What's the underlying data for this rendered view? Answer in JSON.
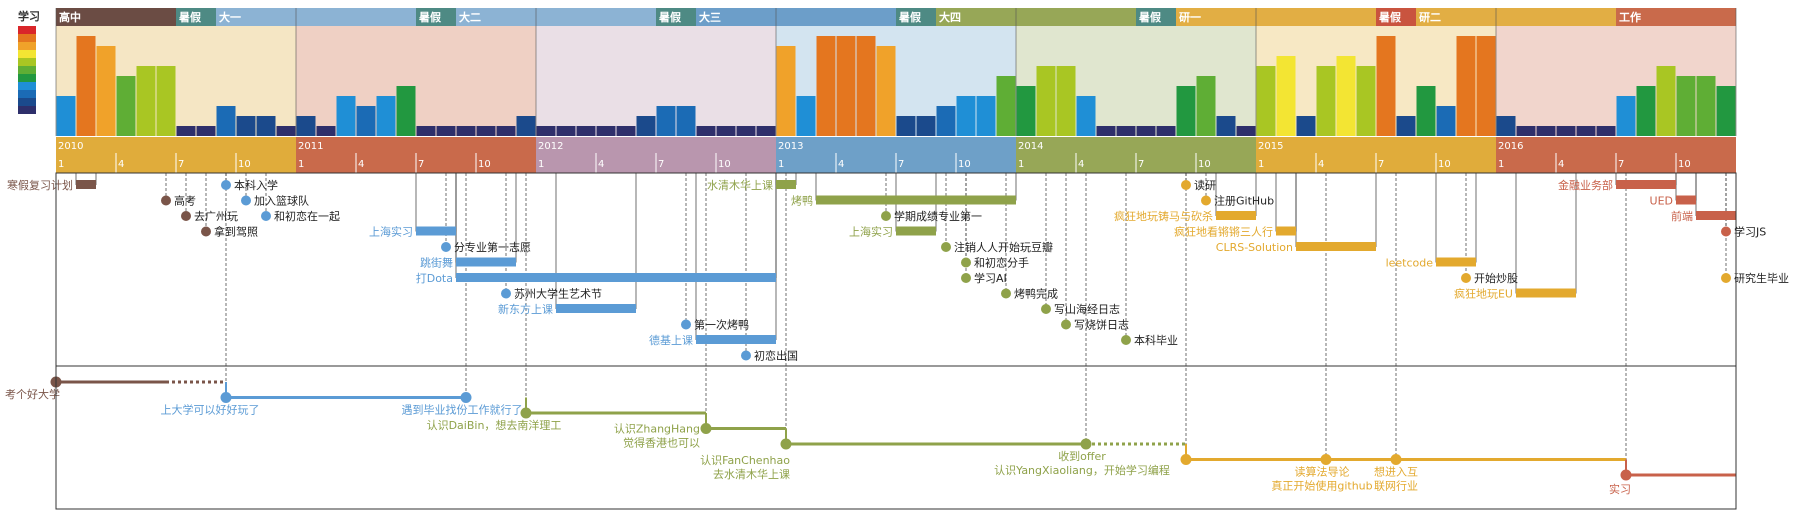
{
  "legend_title": "学习",
  "colors": {
    "brown": "#7a5549",
    "blue": "#5b9bd5",
    "olive": "#8fa24a",
    "gold": "#e3a92e",
    "rust": "#c8614a",
    "axis_gold": "#e0ac3b",
    "axis_rust": "#c96a4b",
    "axis_mauve": "#b996ae",
    "axis_blue": "#6ea0c8",
    "axis_olive": "#97a757"
  },
  "chart_data": {
    "type": "timeline",
    "legend_title": "学习",
    "legend_scale": [
      "#d9262a",
      "#e4761f",
      "#f0a22a",
      "#f3e533",
      "#a9c623",
      "#5fae35",
      "#229840",
      "#1f8fd6",
      "#1b6bb5",
      "#1b4a8c",
      "#2e2f6b"
    ],
    "x_axis": {
      "years": [
        {
          "label": "2010",
          "color": "#e0ac3b"
        },
        {
          "label": "2011",
          "color": "#c96a4b"
        },
        {
          "label": "2012",
          "color": "#b996ae"
        },
        {
          "label": "2013",
          "color": "#6ea0c8"
        },
        {
          "label": "2014",
          "color": "#97a757"
        },
        {
          "label": "2015",
          "color": "#e0ac3b"
        },
        {
          "label": "2016",
          "color": "#c96a4b"
        }
      ],
      "month_ticks": [
        "1",
        "4",
        "7",
        "10"
      ],
      "domain_months": [
        0,
        84
      ]
    },
    "periods": [
      {
        "label": "高中",
        "start": 0,
        "end": 6,
        "color": "#6b4c44",
        "band": "#f5e6c4"
      },
      {
        "label": "暑假",
        "start": 6,
        "end": 8,
        "color": "#4e8a84",
        "band": "#f5e6c4"
      },
      {
        "label": "大一",
        "start": 8,
        "end": 12,
        "color": "#8cb3d4",
        "band": "#f5e6c4"
      },
      {
        "label": "",
        "start": 12,
        "end": 18,
        "color": "#8cb3d4",
        "band": "#efd0c4"
      },
      {
        "label": "暑假",
        "start": 18,
        "end": 20,
        "color": "#4e8a84",
        "band": "#efd0c4"
      },
      {
        "label": "大二",
        "start": 20,
        "end": 24,
        "color": "#8cb3d4",
        "band": "#efd0c4"
      },
      {
        "label": "",
        "start": 24,
        "end": 30,
        "color": "#8cb3d4",
        "band": "#eadfe6"
      },
      {
        "label": "暑假",
        "start": 30,
        "end": 32,
        "color": "#4e8a84",
        "band": "#eadfe6"
      },
      {
        "label": "大三",
        "start": 32,
        "end": 36,
        "color": "#6c9ec9",
        "band": "#eadfe6"
      },
      {
        "label": "",
        "start": 36,
        "end": 42,
        "color": "#6c9ec9",
        "band": "#d3e4f0"
      },
      {
        "label": "暑假",
        "start": 42,
        "end": 44,
        "color": "#4e8a84",
        "band": "#d3e4f0"
      },
      {
        "label": "大四",
        "start": 44,
        "end": 48,
        "color": "#97a757",
        "band": "#d3e4f0"
      },
      {
        "label": "",
        "start": 48,
        "end": 54,
        "color": "#97a757",
        "band": "#e0e6cf"
      },
      {
        "label": "暑假",
        "start": 54,
        "end": 56,
        "color": "#4e8a84",
        "band": "#e0e6cf"
      },
      {
        "label": "研一",
        "start": 56,
        "end": 60,
        "color": "#e2ae44",
        "band": "#e0e6cf"
      },
      {
        "label": "",
        "start": 60,
        "end": 66,
        "color": "#e2ae44",
        "band": "#f7e8c4"
      },
      {
        "label": "暑假",
        "start": 66,
        "end": 68,
        "color": "#c9543f",
        "band": "#f7e8c4"
      },
      {
        "label": "研二",
        "start": 68,
        "end": 72,
        "color": "#e2ae44",
        "band": "#f7e8c4"
      },
      {
        "label": "",
        "start": 72,
        "end": 78,
        "color": "#e2ae44",
        "band": "#f1d5cc"
      },
      {
        "label": "工作",
        "start": 78,
        "end": 84,
        "color": "#c96a4b",
        "band": "#f1d5cc"
      }
    ],
    "study_bars_level": [
      4,
      10,
      9,
      6,
      7,
      7,
      1,
      1,
      3,
      2,
      2,
      1,
      2,
      1,
      4,
      3,
      4,
      5,
      1,
      1,
      1,
      1,
      1,
      2,
      1,
      1,
      1,
      1,
      1,
      2,
      3,
      3,
      1,
      1,
      1,
      1,
      9,
      4,
      10,
      10,
      10,
      9,
      2,
      2,
      3,
      4,
      4,
      6,
      5,
      7,
      7,
      4,
      1,
      1,
      1,
      1,
      5,
      6,
      2,
      1,
      7,
      8,
      2,
      7,
      8,
      7,
      10,
      2,
      5,
      3,
      10,
      10,
      2,
      1,
      1,
      1,
      1,
      1,
      4,
      5,
      7,
      6,
      6,
      5
    ],
    "events": [
      {
        "label": "寒假复习计划",
        "start": 1,
        "end": 2,
        "row": 0,
        "side": "left",
        "type": "bar",
        "color": "#7a5549"
      },
      {
        "label": "本科入学",
        "start": 8.5,
        "row": 0,
        "type": "point",
        "color": "#5b9bd5"
      },
      {
        "label": "高考",
        "start": 5.5,
        "row": 1,
        "type": "point",
        "color": "#7a5549"
      },
      {
        "label": "加入篮球队",
        "start": 9.5,
        "row": 1,
        "type": "point",
        "color": "#5b9bd5"
      },
      {
        "label": "去广州玩",
        "start": 6.5,
        "row": 2,
        "type": "point",
        "color": "#7a5549"
      },
      {
        "label": "和初恋在一起",
        "start": 10.5,
        "row": 2,
        "type": "point",
        "color": "#5b9bd5"
      },
      {
        "label": "拿到驾照",
        "start": 7.5,
        "row": 3,
        "type": "point",
        "color": "#7a5549"
      },
      {
        "label": "上海实习",
        "start": 18,
        "end": 20,
        "row": 3,
        "side": "left",
        "type": "bar",
        "color": "#5b9bd5"
      },
      {
        "label": "分专业第一志愿",
        "start": 19.5,
        "row": 4,
        "type": "point",
        "color": "#5b9bd5"
      },
      {
        "label": "跳街舞",
        "start": 20,
        "end": 23,
        "row": 5,
        "side": "left",
        "type": "bar",
        "color": "#5b9bd5"
      },
      {
        "label": "打Dota",
        "start": 20,
        "end": 36,
        "row": 6,
        "side": "left",
        "type": "bar",
        "color": "#5b9bd5"
      },
      {
        "label": "苏州大学生艺术节",
        "start": 22.5,
        "row": 7,
        "type": "point",
        "color": "#5b9bd5"
      },
      {
        "label": "新东方上课",
        "start": 25,
        "end": 29,
        "row": 8,
        "side": "left",
        "type": "bar",
        "color": "#5b9bd5"
      },
      {
        "label": "第一次烤鸭",
        "start": 31.5,
        "row": 9,
        "type": "point",
        "color": "#5b9bd5"
      },
      {
        "label": "德基上课",
        "start": 32,
        "end": 36,
        "row": 10,
        "side": "left",
        "type": "bar",
        "color": "#5b9bd5"
      },
      {
        "label": "初恋出国",
        "start": 34.5,
        "row": 11,
        "type": "point",
        "color": "#5b9bd5"
      },
      {
        "label": "水清木华上课",
        "start": 36,
        "end": 37,
        "row": 0,
        "side": "left",
        "type": "bar",
        "color": "#8fa24a"
      },
      {
        "label": "烤鸭",
        "start": 38,
        "end": 48,
        "row": 1,
        "side": "left",
        "type": "bar",
        "color": "#8fa24a"
      },
      {
        "label": "学期成绩专业第一",
        "start": 41.5,
        "row": 2,
        "type": "point",
        "color": "#8fa24a"
      },
      {
        "label": "上海实习",
        "start": 42,
        "end": 44,
        "row": 3,
        "side": "left",
        "type": "bar",
        "color": "#8fa24a"
      },
      {
        "label": "注销人人开始玩豆瓣",
        "start": 44.5,
        "row": 4,
        "type": "point",
        "color": "#8fa24a"
      },
      {
        "label": "和初恋分手",
        "start": 45.5,
        "row": 5,
        "type": "point",
        "color": "#8fa24a"
      },
      {
        "label": "学习AI",
        "start": 45.5,
        "row": 6,
        "type": "point",
        "color": "#8fa24a"
      },
      {
        "label": "烤鸭完成",
        "start": 47.5,
        "row": 7,
        "type": "point",
        "color": "#8fa24a"
      },
      {
        "label": "写山海经日志",
        "start": 49.5,
        "row": 8,
        "type": "point",
        "color": "#8fa24a"
      },
      {
        "label": "写烧饼日志",
        "start": 50.5,
        "row": 9,
        "type": "point",
        "color": "#8fa24a"
      },
      {
        "label": "本科毕业",
        "start": 53.5,
        "row": 10,
        "type": "point",
        "color": "#8fa24a"
      },
      {
        "label": "读研",
        "start": 56.5,
        "row": 0,
        "type": "point",
        "color": "#e3a92e"
      },
      {
        "label": "注册GitHub",
        "start": 57.5,
        "row": 1,
        "type": "point",
        "color": "#e3a92e"
      },
      {
        "label": "疯狂地玩铸马与砍杀",
        "start": 58,
        "end": 60,
        "row": 2,
        "side": "left",
        "type": "bar",
        "color": "#e3a92e"
      },
      {
        "label": "疯狂地看锵锵三人行",
        "start": 61,
        "end": 62,
        "row": 3,
        "side": "left",
        "type": "bar",
        "color": "#e3a92e"
      },
      {
        "label": "CLRS-Solution",
        "start": 62,
        "end": 66,
        "row": 4,
        "side": "left",
        "type": "bar",
        "color": "#e3a92e"
      },
      {
        "label": "leetcode",
        "start": 69,
        "end": 71,
        "row": 5,
        "side": "left",
        "type": "bar",
        "color": "#e3a92e"
      },
      {
        "label": "开始炒股",
        "start": 70.5,
        "row": 6,
        "type": "point",
        "color": "#e3a92e"
      },
      {
        "label": "疯狂地玩EU",
        "start": 73,
        "end": 76,
        "row": 7,
        "side": "left",
        "type": "bar",
        "color": "#e3a92e"
      },
      {
        "label": "金融业务部",
        "start": 78,
        "end": 81,
        "row": 0,
        "side": "left",
        "type": "bar",
        "color": "#c8614a"
      },
      {
        "label": "UED",
        "start": 81,
        "end": 82,
        "row": 1,
        "side": "left",
        "type": "bar",
        "color": "#c8614a"
      },
      {
        "label": "前端",
        "start": 82,
        "end": 84,
        "row": 2,
        "side": "left",
        "type": "bar",
        "color": "#c8614a"
      },
      {
        "label": "学习JS",
        "start": 83.5,
        "row": 3,
        "type": "point",
        "color": "#c8614a"
      },
      {
        "label": "研究生毕业",
        "start": 83.5,
        "row": 6,
        "type": "point",
        "color": "#e3a92e"
      }
    ],
    "career_line": {
      "segments": [
        {
          "start": 0,
          "end": 5.5,
          "level": 0,
          "color": "#7a5549",
          "dashed": false
        },
        {
          "start": 5.5,
          "end": 8.5,
          "level": 0,
          "color": "#7a5549",
          "dashed": true
        },
        {
          "start": 8.5,
          "end": 20.5,
          "level": 1,
          "color": "#5b9bd5",
          "dashed": false
        },
        {
          "start": 23.5,
          "end": 32.5,
          "level": 2,
          "color": "#8fa24a",
          "dashed": false
        },
        {
          "start": 32.5,
          "end": 36.5,
          "level": 3,
          "color": "#8fa24a",
          "dashed": false
        },
        {
          "start": 36.5,
          "end": 51.5,
          "level": 4,
          "color": "#8fa24a",
          "dashed": false
        },
        {
          "start": 51.5,
          "end": 56.5,
          "level": 4,
          "color": "#8fa24a",
          "dashed": true
        },
        {
          "start": 56.5,
          "end": 78.5,
          "level": 5,
          "color": "#e3a92e",
          "dashed": false
        },
        {
          "start": 78.5,
          "end": 84,
          "level": 6,
          "color": "#c8614a",
          "dashed": false
        }
      ],
      "steps": [
        {
          "at": 8.5,
          "from": 0,
          "to": 1,
          "color": "#5b9bd5"
        },
        {
          "at": 20.5,
          "from": 1,
          "to": 1,
          "color": "#5b9bd5"
        },
        {
          "at": 23.5,
          "from": 1,
          "to": 2,
          "color": "#8fa24a"
        },
        {
          "at": 32.5,
          "from": 2,
          "to": 3,
          "color": "#8fa24a"
        },
        {
          "at": 36.5,
          "from": 3,
          "to": 4,
          "color": "#8fa24a"
        },
        {
          "at": 56.5,
          "from": 4,
          "to": 5,
          "color": "#e3a92e"
        },
        {
          "at": 78.5,
          "from": 5,
          "to": 6,
          "color": "#c8614a"
        }
      ],
      "milestones": [
        {
          "at": 0,
          "level": 0,
          "color": "#7a5549",
          "lines": [
            "考个好大学"
          ],
          "anchor": "end",
          "dx": 4,
          "dy": 16
        },
        {
          "at": 8.5,
          "level": 1,
          "color": "#5b9bd5",
          "lines": [
            "上大学可以好好玩了"
          ],
          "anchor": "middle",
          "dx": -16,
          "dy": 16
        },
        {
          "at": 20.5,
          "level": 1,
          "color": "#5b9bd5",
          "lines": [
            "遇到毕业找份工作就行了"
          ],
          "anchor": "middle",
          "dx": -4,
          "dy": 16
        },
        {
          "at": 23.5,
          "level": 2,
          "color": "#8fa24a",
          "lines": [
            "认识DaiBin，想去南洋理工"
          ],
          "anchor": "middle",
          "dx": -32,
          "dy": 16
        },
        {
          "at": 32.5,
          "level": 3,
          "color": "#8fa24a",
          "lines": [
            "认识ZhangHang",
            "觉得香港也可以"
          ],
          "anchor": "end",
          "dx": -6,
          "dy": 4
        },
        {
          "at": 36.5,
          "level": 4,
          "color": "#8fa24a",
          "lines": [
            "认识FanChenhao",
            "去水清木华上课"
          ],
          "anchor": "end",
          "dx": 4,
          "dy": 20
        },
        {
          "at": 51.5,
          "level": 4,
          "color": "#8fa24a",
          "lines": [
            "收到offer",
            "认识YangXiaoliang，开始学习编程"
          ],
          "anchor": "middle",
          "dx": -4,
          "dy": 16
        },
        {
          "at": 56.5,
          "level": 5,
          "color": "#e3a92e",
          "lines": [],
          "anchor": "middle",
          "dx": 0,
          "dy": 0
        },
        {
          "at": 63.5,
          "level": 5,
          "color": "#e3a92e",
          "lines": [
            "读算法导论",
            "真正开始使用github"
          ],
          "anchor": "middle",
          "dx": -4,
          "dy": 16
        },
        {
          "at": 67,
          "level": 5,
          "color": "#e3a92e",
          "lines": [
            "想进入互",
            "联网行业"
          ],
          "anchor": "middle",
          "dx": 0,
          "dy": 16
        },
        {
          "at": 78.5,
          "level": 6,
          "color": "#c8614a",
          "lines": [
            "实习"
          ],
          "anchor": "middle",
          "dx": -6,
          "dy": 18
        }
      ]
    }
  }
}
